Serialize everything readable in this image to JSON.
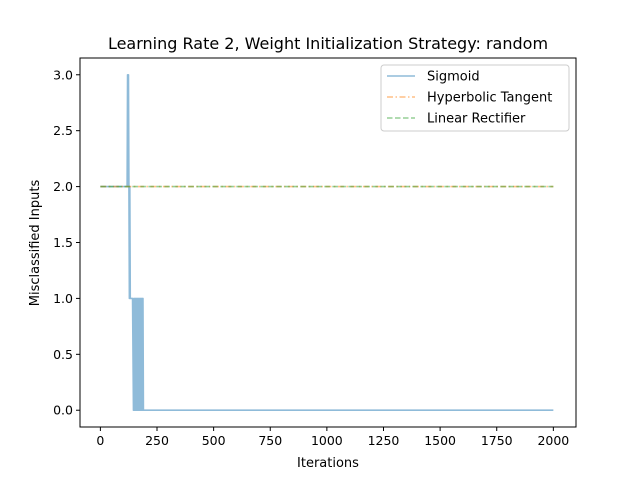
{
  "chart_data": {
    "type": "line",
    "title": "Learning Rate 2, Weight Initialization Strategy: random",
    "xlabel": "Iterations",
    "ylabel": "Misclassified Inputs",
    "xlim": [
      -90,
      2100
    ],
    "ylim": [
      -0.15,
      3.15
    ],
    "x_ticks": [
      0,
      250,
      500,
      750,
      1000,
      1250,
      1500,
      1750,
      2000
    ],
    "x_tick_labels": [
      "0",
      "250",
      "500",
      "750",
      "1000",
      "1250",
      "1500",
      "1750",
      "2000"
    ],
    "y_ticks": [
      0.0,
      0.5,
      1.0,
      1.5,
      2.0,
      2.5,
      3.0
    ],
    "y_tick_labels": [
      "0.0",
      "0.5",
      "1.0",
      "1.5",
      "2.0",
      "2.5",
      "3.0"
    ],
    "grid": false,
    "legend_position": "top-right",
    "series": [
      {
        "name": "Sigmoid",
        "color": "#1f77b4",
        "linestyle": "solid",
        "oscillation": {
          "x_range": [
            150,
            190
          ],
          "low": 0,
          "high": 1,
          "step": 2
        },
        "points": [
          [
            0,
            2
          ],
          [
            118,
            2
          ],
          [
            120,
            3
          ],
          [
            122,
            2
          ],
          [
            124,
            3
          ],
          [
            126,
            2
          ],
          [
            128,
            1
          ],
          [
            130,
            2
          ],
          [
            132,
            1
          ],
          [
            134,
            1
          ],
          [
            138,
            1
          ],
          [
            142,
            1
          ],
          [
            146,
            0
          ],
          [
            148,
            1
          ],
          [
            150,
            0
          ],
          [
            190,
            0
          ],
          [
            2000,
            0
          ]
        ]
      },
      {
        "name": "Hyperbolic Tangent",
        "color": "#ff7f0e",
        "linestyle": "dashdot",
        "points": [
          [
            0,
            2
          ],
          [
            2000,
            2
          ]
        ]
      },
      {
        "name": "Linear Rectifier",
        "color": "#2ca02c",
        "linestyle": "dashed",
        "points": [
          [
            0,
            2
          ],
          [
            2000,
            2
          ]
        ]
      }
    ]
  }
}
